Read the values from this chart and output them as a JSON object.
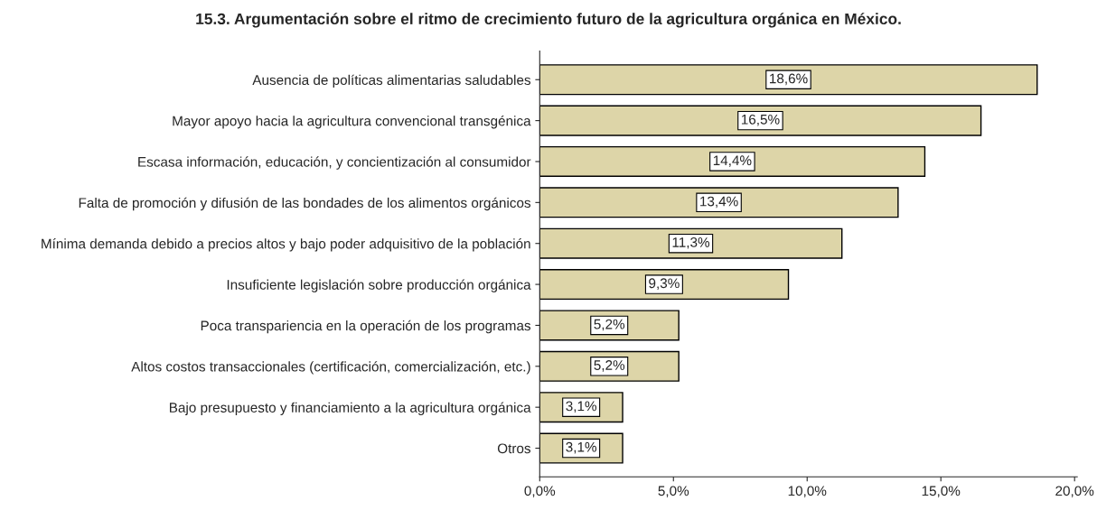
{
  "chart_data": {
    "type": "bar",
    "orientation": "horizontal",
    "title": "15.3. Argumentación sobre el ritmo de crecimiento futuro de la agricultura orgánica en México.",
    "categories": [
      "Ausencia de políticas alimentarias saludables",
      "Mayor apoyo hacia la agricultura convencional transgénica",
      "Escasa información, educación, y concientización al consumidor",
      "Falta de promoción y difusión de las bondades de los alimentos orgánicos",
      "Mínima demanda debido a precios altos y bajo poder adquisitivo de la población",
      "Insuficiente legislación sobre producción orgánica",
      "Poca transpariencia en la operación de los programas",
      "Altos costos transaccionales (certificación, comercialización, etc.)",
      "Bajo presupuesto y financiamiento a la agricultura orgánica",
      "Otros"
    ],
    "values": [
      18.6,
      16.5,
      14.4,
      13.4,
      11.3,
      9.3,
      5.2,
      5.2,
      3.1,
      3.1
    ],
    "value_labels": [
      "18,6%",
      "16,5%",
      "14,4%",
      "13,4%",
      "11,3%",
      "9,3%",
      "5,2%",
      "5,2%",
      "3,1%",
      "3,1%"
    ],
    "color": "#ddd5a8",
    "xlim": [
      0,
      20.1
    ],
    "xticks": [
      {
        "value": 0,
        "label": "0,0%"
      },
      {
        "value": 5,
        "label": "5,0%"
      },
      {
        "value": 10,
        "label": "10,0%"
      },
      {
        "value": 15,
        "label": "15,0%"
      },
      {
        "value": 20,
        "label": "20,0%"
      }
    ],
    "grid": false
  }
}
